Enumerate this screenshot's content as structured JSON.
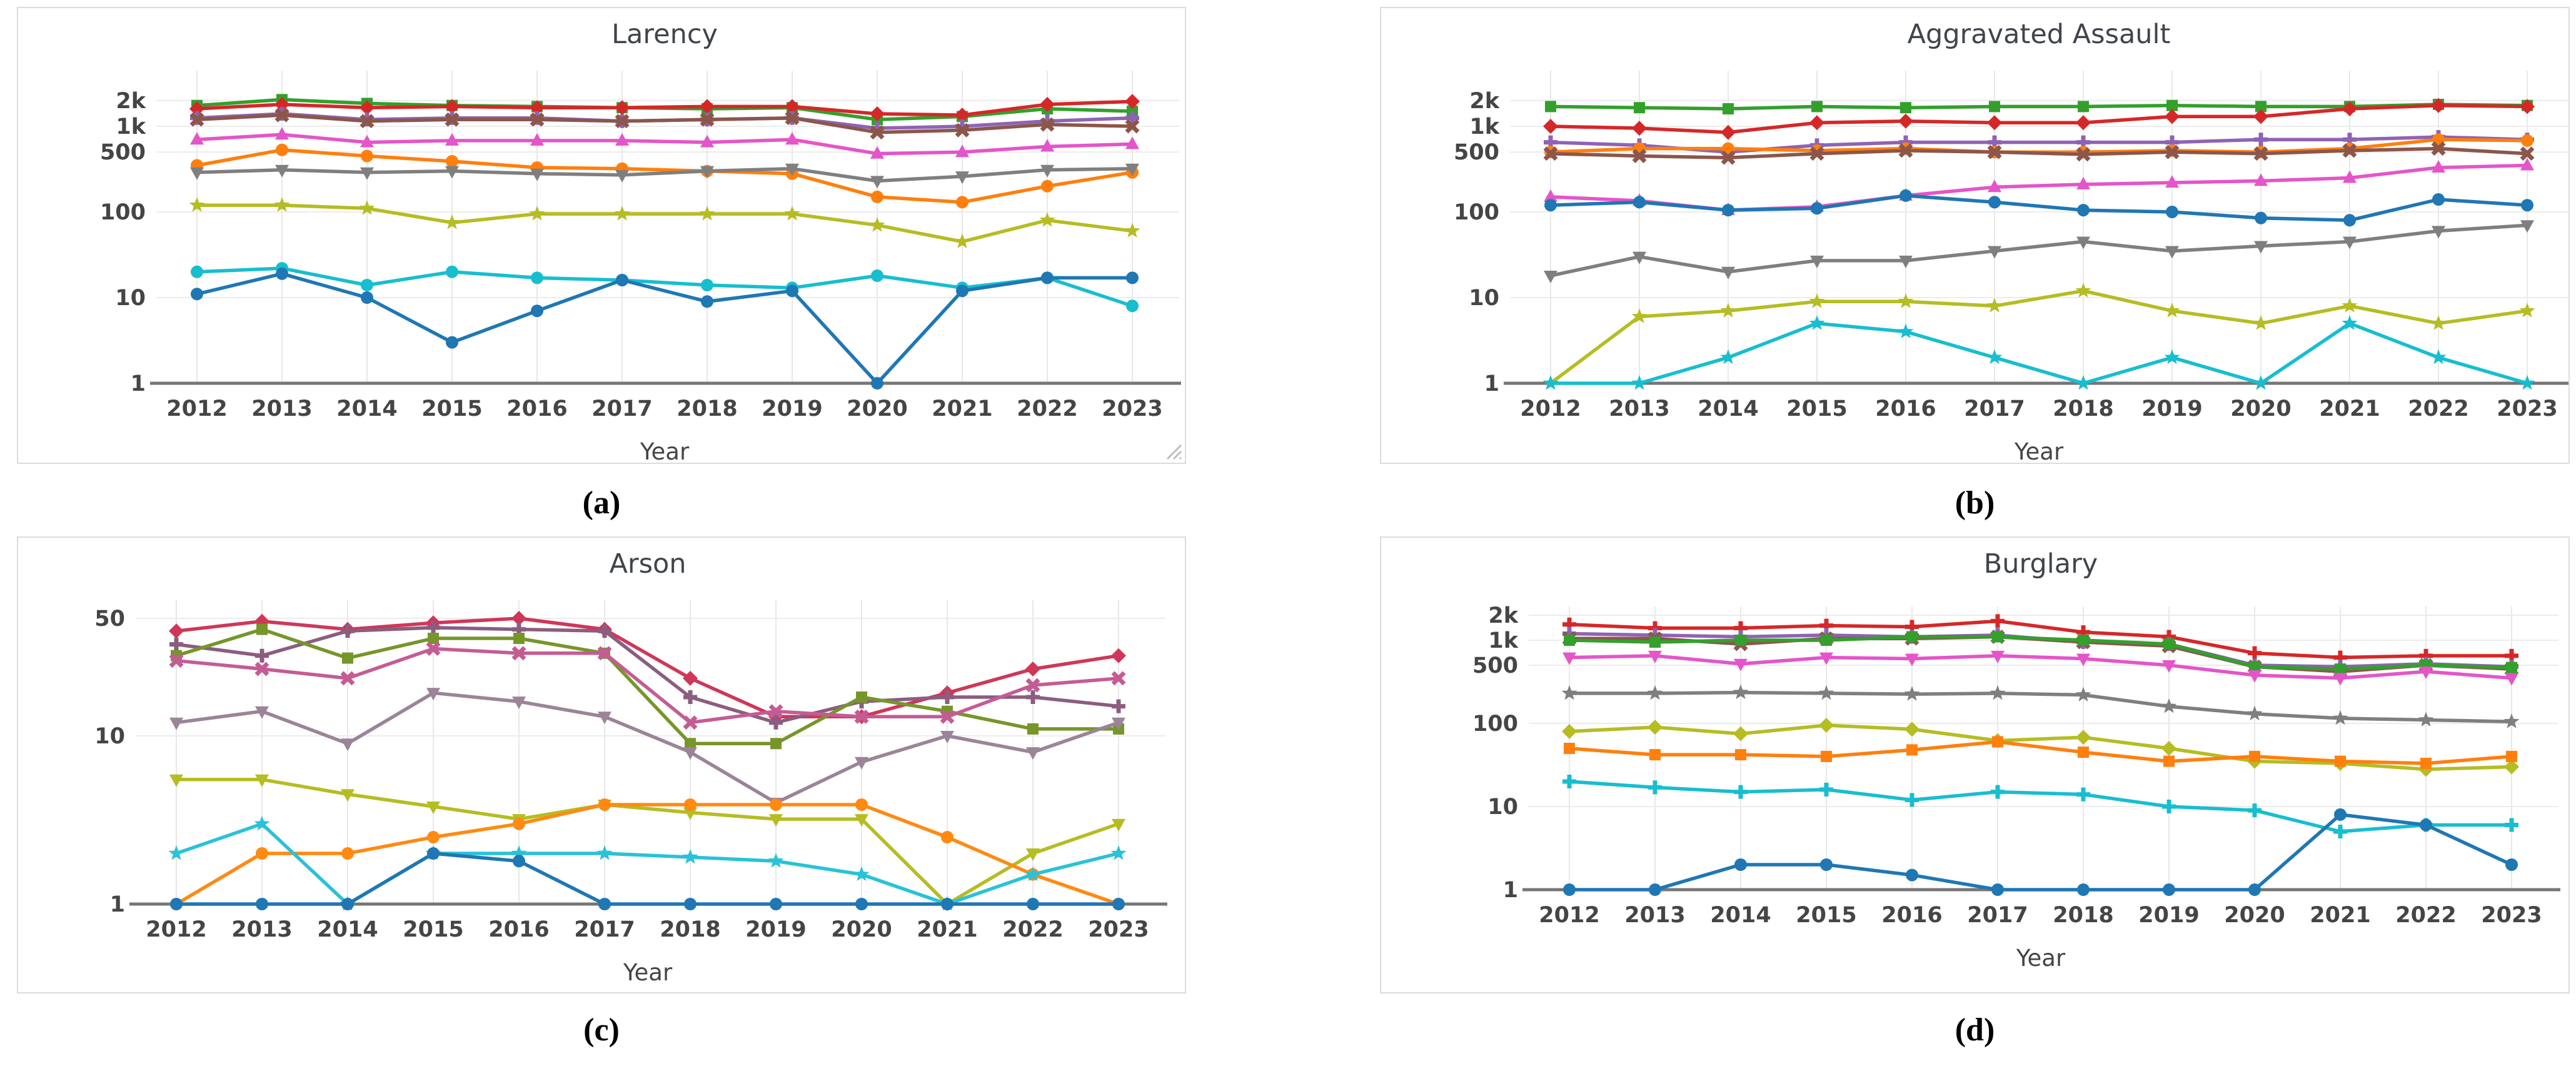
{
  "captions": {
    "a": "(a)",
    "b": "(b)",
    "c": "(c)",
    "d": "(d)"
  },
  "chart_data": [
    {
      "key": "a",
      "type": "line",
      "title": "Larency",
      "xlabel": "Year",
      "x": [
        2012,
        2013,
        2014,
        2015,
        2016,
        2017,
        2018,
        2019,
        2020,
        2021,
        2022,
        2023
      ],
      "ylog": true,
      "ylim": [
        1,
        3000
      ],
      "grid": true,
      "legend": "none",
      "yticks": [
        {
          "label": "2k",
          "value": 2000
        },
        {
          "label": "1k",
          "value": 1000
        },
        {
          "label": "500",
          "value": 500
        },
        {
          "label": "100",
          "value": 100
        },
        {
          "label": "10",
          "value": 10
        },
        {
          "label": "1",
          "value": 1
        }
      ],
      "series": [
        {
          "name": "green",
          "color": "#33a02c",
          "marker": "square",
          "values": [
            1750,
            2050,
            1850,
            1750,
            1700,
            1650,
            1600,
            1650,
            1200,
            1300,
            1600,
            1500
          ]
        },
        {
          "name": "red",
          "color": "#d62728",
          "marker": "diamond",
          "values": [
            1600,
            1800,
            1650,
            1700,
            1650,
            1650,
            1700,
            1700,
            1400,
            1350,
            1800,
            1950
          ]
        },
        {
          "name": "purple",
          "color": "#8e63b5",
          "marker": "plus",
          "values": [
            1250,
            1400,
            1200,
            1250,
            1250,
            1150,
            1200,
            1250,
            950,
            1000,
            1150,
            1250
          ]
        },
        {
          "name": "brown",
          "color": "#8c564b",
          "marker": "x",
          "values": [
            1200,
            1350,
            1150,
            1200,
            1200,
            1150,
            1200,
            1250,
            850,
            900,
            1050,
            1000
          ]
        },
        {
          "name": "pink",
          "color": "#e455c9",
          "marker": "triangle-up",
          "values": [
            700,
            800,
            650,
            680,
            680,
            680,
            650,
            700,
            480,
            500,
            580,
            620
          ]
        },
        {
          "name": "orange",
          "color": "#ff7f0e",
          "marker": "circle",
          "values": [
            350,
            530,
            450,
            390,
            330,
            320,
            300,
            280,
            150,
            130,
            200,
            290
          ]
        },
        {
          "name": "gray",
          "color": "#7f7f7f",
          "marker": "triangle-down",
          "values": [
            290,
            310,
            290,
            300,
            280,
            270,
            300,
            320,
            230,
            260,
            310,
            320
          ]
        },
        {
          "name": "olive",
          "color": "#b5bd22",
          "marker": "star",
          "values": [
            120,
            120,
            110,
            75,
            95,
            95,
            95,
            95,
            70,
            45,
            80,
            60
          ]
        },
        {
          "name": "cyan",
          "color": "#17becf",
          "marker": "circle",
          "values": [
            20,
            22,
            14,
            20,
            17,
            16,
            14,
            13,
            18,
            13,
            17,
            8
          ]
        },
        {
          "name": "blue",
          "color": "#1f77b4",
          "marker": "circle",
          "values": [
            11,
            19,
            10,
            3,
            7,
            16,
            9,
            12,
            1,
            12,
            17,
            17
          ]
        }
      ]
    },
    {
      "key": "b",
      "type": "line",
      "title": "Aggravated Assault",
      "xlabel": "Year",
      "x": [
        2012,
        2013,
        2014,
        2015,
        2016,
        2017,
        2018,
        2019,
        2020,
        2021,
        2022,
        2023
      ],
      "ylog": true,
      "ylim": [
        1,
        3000
      ],
      "grid": true,
      "legend": "none",
      "yticks": [
        {
          "label": "2k",
          "value": 2000
        },
        {
          "label": "1k",
          "value": 1000
        },
        {
          "label": "500",
          "value": 500
        },
        {
          "label": "100",
          "value": 100
        },
        {
          "label": "10",
          "value": 10
        },
        {
          "label": "1",
          "value": 1
        }
      ],
      "series": [
        {
          "name": "green",
          "color": "#33a02c",
          "marker": "square",
          "values": [
            1700,
            1650,
            1600,
            1700,
            1650,
            1700,
            1700,
            1750,
            1700,
            1700,
            1800,
            1750
          ]
        },
        {
          "name": "red",
          "color": "#d62728",
          "marker": "diamond",
          "values": [
            1000,
            950,
            850,
            1100,
            1150,
            1100,
            1100,
            1300,
            1300,
            1600,
            1750,
            1700
          ]
        },
        {
          "name": "purple",
          "color": "#8e63b5",
          "marker": "plus",
          "values": [
            650,
            600,
            500,
            600,
            650,
            650,
            650,
            650,
            700,
            700,
            750,
            700
          ]
        },
        {
          "name": "orange",
          "color": "#ff7f0e",
          "marker": "circle",
          "values": [
            500,
            550,
            550,
            520,
            550,
            500,
            500,
            520,
            500,
            550,
            700,
            680
          ]
        },
        {
          "name": "brown",
          "color": "#8c564b",
          "marker": "x",
          "values": [
            480,
            450,
            430,
            480,
            520,
            500,
            470,
            500,
            480,
            520,
            550,
            480
          ]
        },
        {
          "name": "pink",
          "color": "#e455c9",
          "marker": "triangle-up",
          "values": [
            150,
            135,
            105,
            115,
            155,
            195,
            210,
            220,
            230,
            250,
            330,
            350
          ]
        },
        {
          "name": "blue",
          "color": "#1f77b4",
          "marker": "circle",
          "values": [
            120,
            130,
            105,
            110,
            155,
            130,
            105,
            100,
            85,
            80,
            140,
            120
          ]
        },
        {
          "name": "gray",
          "color": "#7f7f7f",
          "marker": "triangle-down",
          "values": [
            18,
            30,
            20,
            27,
            27,
            35,
            45,
            35,
            40,
            45,
            60,
            70
          ]
        },
        {
          "name": "olive",
          "color": "#b5bd22",
          "marker": "star",
          "values": [
            1,
            6,
            7,
            9,
            9,
            8,
            12,
            7,
            5,
            8,
            5,
            7
          ]
        },
        {
          "name": "cyan",
          "color": "#17becf",
          "marker": "star",
          "values": [
            1,
            1,
            2,
            5,
            4,
            2,
            1,
            2,
            1,
            5,
            2,
            1
          ]
        }
      ]
    },
    {
      "key": "c",
      "type": "line",
      "title": "Arson",
      "xlabel": "Year",
      "x": [
        2012,
        2013,
        2014,
        2015,
        2016,
        2017,
        2018,
        2019,
        2020,
        2021,
        2022,
        2023
      ],
      "ylog": true,
      "ylim": [
        1,
        90
      ],
      "grid": true,
      "legend": "none",
      "yticks": [
        {
          "label": "50",
          "value": 50
        },
        {
          "label": "10",
          "value": 10
        },
        {
          "label": "1",
          "value": 1
        }
      ],
      "series": [
        {
          "name": "red",
          "color": "#cf3759",
          "marker": "diamond",
          "values": [
            42,
            48,
            43,
            47,
            50,
            43,
            22,
            13,
            13,
            18,
            25,
            30
          ]
        },
        {
          "name": "purple",
          "color": "#8b5d80",
          "marker": "plus",
          "values": [
            35,
            30,
            42,
            44,
            43,
            42,
            17,
            12,
            16,
            17,
            17,
            15
          ]
        },
        {
          "name": "green",
          "color": "#76962a",
          "marker": "square",
          "values": [
            30,
            43,
            29,
            38,
            38,
            31,
            9,
            9,
            17,
            14,
            11,
            11
          ]
        },
        {
          "name": "rose",
          "color": "#c45c94",
          "marker": "x",
          "values": [
            28,
            25,
            22,
            33,
            31,
            31,
            12,
            14,
            13,
            13,
            20,
            22
          ]
        },
        {
          "name": "mauve",
          "color": "#9b8498",
          "marker": "triangle-down",
          "values": [
            12,
            14,
            9,
            18,
            16,
            13,
            8,
            4,
            7,
            10,
            8,
            12
          ]
        },
        {
          "name": "olive",
          "color": "#b5bd22",
          "marker": "triangle-down",
          "values": [
            5.5,
            5.5,
            4.5,
            3.8,
            3.2,
            3.9,
            3.5,
            3.2,
            3.2,
            1,
            2,
            3
          ]
        },
        {
          "name": "orange",
          "color": "#ff8a12",
          "marker": "circle",
          "values": [
            1,
            2,
            2,
            2.5,
            3,
            3.9,
            3.9,
            3.9,
            3.9,
            2.5,
            1.5,
            1
          ]
        },
        {
          "name": "cyan",
          "color": "#29c2d8",
          "marker": "star",
          "values": [
            2,
            3,
            1,
            2,
            2,
            2,
            1.9,
            1.8,
            1.5,
            1,
            1.5,
            2
          ]
        },
        {
          "name": "blue",
          "color": "#1f77b4",
          "marker": "circle",
          "values": [
            1,
            1,
            1,
            2,
            1.8,
            1,
            1,
            1,
            1,
            1,
            1,
            1
          ]
        }
      ]
    },
    {
      "key": "d",
      "type": "line",
      "title": "Burglary",
      "xlabel": "Year",
      "x": [
        2012,
        2013,
        2014,
        2015,
        2016,
        2017,
        2018,
        2019,
        2020,
        2021,
        2022,
        2023
      ],
      "ylog": true,
      "ylim": [
        1,
        3000
      ],
      "grid": true,
      "legend": "none",
      "yticks": [
        {
          "label": "2k",
          "value": 2000
        },
        {
          "label": "1k",
          "value": 1000
        },
        {
          "label": "500",
          "value": 500
        },
        {
          "label": "100",
          "value": 100
        },
        {
          "label": "10",
          "value": 10
        },
        {
          "label": "1",
          "value": 1
        }
      ],
      "series": [
        {
          "name": "red",
          "color": "#d62728",
          "marker": "plus",
          "values": [
            1550,
            1400,
            1400,
            1500,
            1450,
            1700,
            1250,
            1100,
            700,
            620,
            650,
            650
          ]
        },
        {
          "name": "purple",
          "color": "#8e63b5",
          "marker": "plus",
          "values": [
            1200,
            1150,
            1100,
            1150,
            1100,
            1150,
            950,
            900,
            500,
            480,
            520,
            480
          ]
        },
        {
          "name": "brown",
          "color": "#8c564b",
          "marker": "x",
          "values": [
            1050,
            1050,
            900,
            1050,
            1050,
            1100,
            950,
            850,
            480,
            420,
            500,
            450
          ]
        },
        {
          "name": "green",
          "color": "#33a02c",
          "marker": "square",
          "values": [
            1000,
            950,
            1000,
            1000,
            1100,
            1100,
            1000,
            900,
            480,
            450,
            500,
            470
          ]
        },
        {
          "name": "pink",
          "color": "#e455c9",
          "marker": "triangle-down",
          "values": [
            620,
            650,
            520,
            620,
            600,
            650,
            600,
            500,
            380,
            350,
            420,
            350
          ]
        },
        {
          "name": "gray",
          "color": "#7f7f7f",
          "marker": "star",
          "values": [
            230,
            230,
            235,
            230,
            225,
            230,
            220,
            160,
            130,
            115,
            110,
            105
          ]
        },
        {
          "name": "olive",
          "color": "#b5bd22",
          "marker": "diamond",
          "values": [
            80,
            90,
            75,
            95,
            85,
            62,
            68,
            50,
            35,
            33,
            28,
            30
          ]
        },
        {
          "name": "orange",
          "color": "#ff7f0e",
          "marker": "square",
          "values": [
            50,
            42,
            42,
            40,
            48,
            60,
            45,
            35,
            40,
            35,
            33,
            40
          ]
        },
        {
          "name": "cyan",
          "color": "#17becf",
          "marker": "plus",
          "values": [
            20,
            17,
            15,
            16,
            12,
            15,
            14,
            10,
            9,
            5,
            6,
            6
          ]
        },
        {
          "name": "blue",
          "color": "#1f77b4",
          "marker": "circle",
          "values": [
            1,
            1,
            2,
            2,
            1.5,
            1,
            1,
            1,
            1,
            8,
            6,
            2
          ]
        }
      ]
    }
  ]
}
